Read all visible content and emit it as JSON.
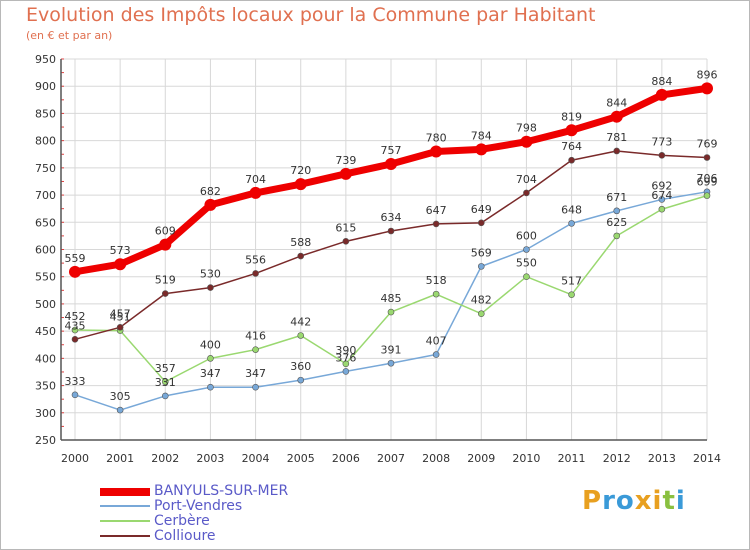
{
  "title": "Evolution des Impôts locaux pour la Commune par Habitant",
  "subtitle": "(en € et par an)",
  "logo": {
    "text": "Proxiti",
    "colors": [
      "#e8a020",
      "#3a9ad8",
      "#3a9ad8",
      "#e8a020",
      "#e8a020",
      "#8ac040",
      "#3a9ad8"
    ]
  },
  "chart_data": {
    "type": "line",
    "x": [
      "2000",
      "2001",
      "2002",
      "2003",
      "2004",
      "2005",
      "2006",
      "2007",
      "2008",
      "2009",
      "2010",
      "2011",
      "2012",
      "2013",
      "2014"
    ],
    "ylim": [
      250,
      950
    ],
    "yticks": [
      250,
      300,
      350,
      400,
      450,
      500,
      550,
      600,
      650,
      700,
      750,
      800,
      850,
      900,
      950
    ],
    "grid": true,
    "legend_position": "bottom-left",
    "series": [
      {
        "name": "BANYULS-SUR-MER",
        "color": "#ee0000",
        "width": 7,
        "marker": 6,
        "values": [
          559,
          573,
          609,
          682,
          704,
          720,
          739,
          757,
          780,
          784,
          798,
          819,
          844,
          884,
          896
        ],
        "labels": [
          "559",
          "573",
          "609",
          "682",
          "704",
          "720",
          "739",
          "757",
          "780",
          "784",
          "798",
          "819",
          "844",
          "884",
          "896"
        ]
      },
      {
        "name": "Port-Vendres",
        "color": "#78a8d8",
        "width": 1.5,
        "marker": 3,
        "values": [
          333,
          305,
          331,
          347,
          347,
          360,
          376,
          391,
          407,
          569,
          600,
          648,
          671,
          692,
          706
        ],
        "labels": [
          "333",
          "305",
          "331",
          "347",
          "347",
          "360",
          "376",
          "391",
          "407",
          "569",
          "600",
          "648",
          "671",
          "692",
          "706"
        ]
      },
      {
        "name": "Cerbère",
        "color": "#9ad870",
        "width": 1.5,
        "marker": 3,
        "values": [
          452,
          451,
          357,
          400,
          416,
          442,
          390,
          485,
          518,
          482,
          550,
          517,
          625,
          674,
          699
        ],
        "labels": [
          "452",
          "451",
          "357",
          "400",
          "416",
          "442",
          "390",
          "485",
          "518",
          "482",
          "550",
          "517",
          "625",
          "674",
          "699"
        ]
      },
      {
        "name": "Collioure",
        "color": "#7a2a2a",
        "width": 1.5,
        "marker": 3,
        "values": [
          435,
          457,
          519,
          530,
          556,
          588,
          615,
          634,
          647,
          649,
          704,
          764,
          781,
          773,
          769
        ],
        "labels": [
          "435",
          "457",
          "519",
          "530",
          "556",
          "588",
          "615",
          "634",
          "647",
          "649",
          "704",
          "764",
          "781",
          "773",
          "769"
        ]
      }
    ]
  }
}
